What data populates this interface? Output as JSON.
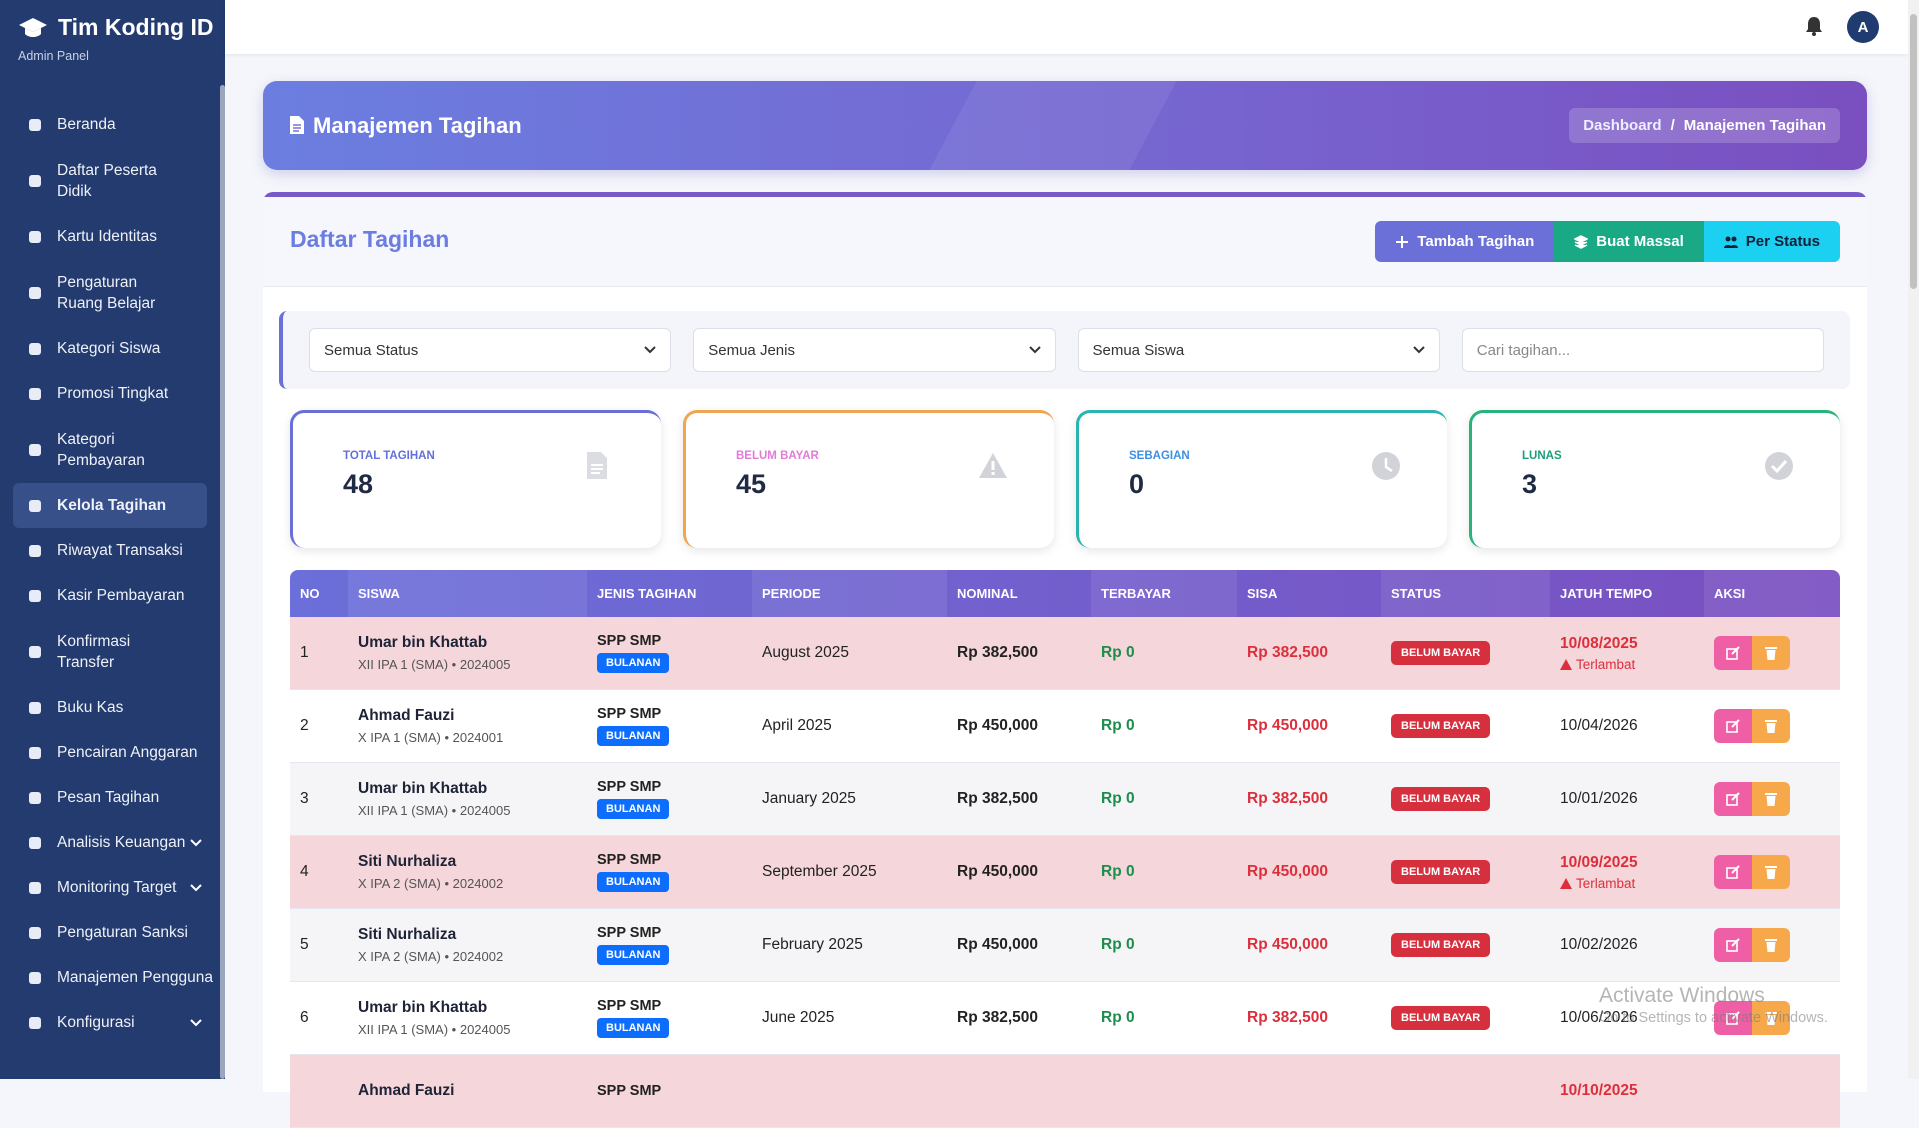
{
  "brand": {
    "title": "Tim Koding ID",
    "subtitle": "Admin Panel"
  },
  "menu": [
    {
      "label": "Beranda"
    },
    {
      "label": "Daftar Peserta Didik"
    },
    {
      "label": "Kartu Identitas"
    },
    {
      "label": "Pengaturan Ruang Belajar"
    },
    {
      "label": "Kategori Siswa"
    },
    {
      "label": "Promosi Tingkat"
    },
    {
      "label": "Kategori Pembayaran"
    },
    {
      "label": "Kelola Tagihan",
      "active": true
    },
    {
      "label": "Riwayat Transaksi"
    },
    {
      "label": "Kasir Pembayaran"
    },
    {
      "label": "Konfirmasi Transfer"
    },
    {
      "label": "Buku Kas"
    },
    {
      "label": "Pencairan Anggaran"
    },
    {
      "label": "Pesan Tagihan"
    },
    {
      "label": "Analisis Keuangan",
      "expandable": true
    },
    {
      "label": "Monitoring Target",
      "expandable": true
    },
    {
      "label": "Pengaturan Sanksi"
    },
    {
      "label": "Manajemen Pengguna"
    },
    {
      "label": "Konfigurasi",
      "expandable": true
    }
  ],
  "header": {
    "avatar": "A"
  },
  "page_header": {
    "title": "Manajemen Tagihan",
    "breadcrumb": [
      "Dashboard",
      "Manajemen Tagihan"
    ],
    "separator": "/"
  },
  "card": {
    "title": "Daftar Tagihan",
    "buttons": [
      "Tambah Tagihan",
      "Buat Massal",
      "Per Status"
    ]
  },
  "filters": {
    "selects": [
      "Semua Status",
      "Semua Jenis",
      "Semua Siswa"
    ],
    "search_placeholder": "Cari tagihan..."
  },
  "stats": [
    {
      "label": "TOTAL TAGIHAN",
      "value": 48,
      "color": "#6470d9"
    },
    {
      "label": "BELUM BAYAR",
      "value": 45,
      "color": "#e27ad8"
    },
    {
      "label": "SEBAGIAN",
      "value": 0,
      "color": "#3c8fe0"
    },
    {
      "label": "LUNAS",
      "value": 3,
      "color": "#1c9e78"
    }
  ],
  "table": {
    "columns": [
      "NO",
      "SISWA",
      "JENIS TAGIHAN",
      "PERIODE",
      "NOMINAL",
      "TERBAYAR",
      "SISA",
      "STATUS",
      "JATUH TEMPO",
      "AKSI"
    ],
    "rows": [
      {
        "no": 1,
        "name": "Umar bin Khattab",
        "detail": "XII IPA 1 (SMA) • 2024005",
        "type": "SPP SMP",
        "tag": "BULANAN",
        "period": "August 2025",
        "nominal": "Rp 382,500",
        "paid": "Rp 0",
        "remaining": "Rp 382,500",
        "status": "BELUM BAYAR",
        "due": "10/08/2025",
        "note": "Terlambat",
        "overdue": true
      },
      {
        "no": 2,
        "name": "Ahmad Fauzi",
        "detail": "X IPA 1 (SMA) • 2024001",
        "type": "SPP SMP",
        "tag": "BULANAN",
        "period": "April 2025",
        "nominal": "Rp 450,000",
        "paid": "Rp 0",
        "remaining": "Rp 450,000",
        "status": "BELUM BAYAR",
        "due": "10/04/2026",
        "overdue": false
      },
      {
        "no": 3,
        "name": "Umar bin Khattab",
        "detail": "XII IPA 1 (SMA) • 2024005",
        "type": "SPP SMP",
        "tag": "BULANAN",
        "period": "January 2025",
        "nominal": "Rp 382,500",
        "paid": "Rp 0",
        "remaining": "Rp 382,500",
        "status": "BELUM BAYAR",
        "due": "10/01/2026",
        "overdue": false
      },
      {
        "no": 4,
        "name": "Siti Nurhaliza",
        "detail": "X IPA 2 (SMA) • 2024002",
        "type": "SPP SMP",
        "tag": "BULANAN",
        "period": "September 2025",
        "nominal": "Rp 450,000",
        "paid": "Rp 0",
        "remaining": "Rp 450,000",
        "status": "BELUM BAYAR",
        "due": "10/09/2025",
        "note": "Terlambat",
        "overdue": true
      },
      {
        "no": 5,
        "name": "Siti Nurhaliza",
        "detail": "X IPA 2 (SMA) • 2024002",
        "type": "SPP SMP",
        "tag": "BULANAN",
        "period": "February 2025",
        "nominal": "Rp 450,000",
        "paid": "Rp 0",
        "remaining": "Rp 450,000",
        "status": "BELUM BAYAR",
        "due": "10/02/2026",
        "overdue": false
      },
      {
        "no": 6,
        "name": "Umar bin Khattab",
        "detail": "XII IPA 1 (SMA) • 2024005",
        "type": "SPP SMP",
        "tag": "BULANAN",
        "period": "June 2025",
        "nominal": "Rp 382,500",
        "paid": "Rp 0",
        "remaining": "Rp 382,500",
        "status": "BELUM BAYAR",
        "due": "10/06/2026",
        "overdue": false
      },
      {
        "name": "Ahmad Fauzi",
        "type": "SPP SMP",
        "due": "10/10/2025",
        "overdue": true
      }
    ]
  },
  "watermark": {
    "title": "Activate Windows",
    "subtitle": "Go to Settings to activate Windows."
  }
}
